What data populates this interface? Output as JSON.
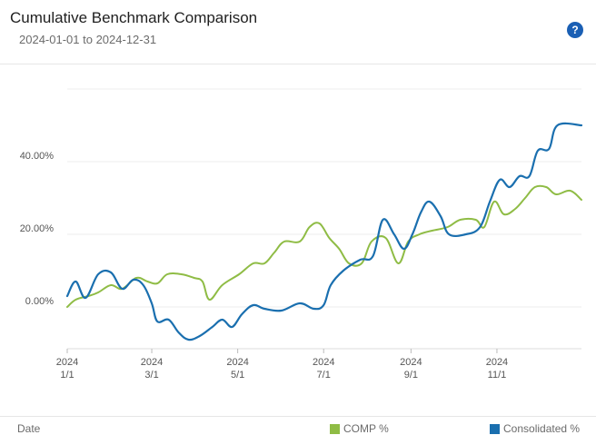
{
  "header": {
    "title": "Cumulative Benchmark Comparison",
    "subtitle": "2024-01-01 to 2024-12-31",
    "help_symbol": "?"
  },
  "footer": {
    "x_label": "Date"
  },
  "colors": {
    "comp": "#8fbc45",
    "consolidated": "#1a6faf",
    "help": "#1a5fb4"
  },
  "icons": {
    "help": "question-circle-icon"
  },
  "chart_data": {
    "type": "line",
    "xlabel": "Date",
    "ylabel": "",
    "ylim": [
      -12,
      60
    ],
    "y_ticks": [
      0,
      20,
      40
    ],
    "y_tick_labels": [
      "0.00%",
      "20.00%",
      "40.00%"
    ],
    "x_ticks": [
      "2024-01-01",
      "2024-03-01",
      "2024-05-01",
      "2024-07-01",
      "2024-09-01",
      "2024-11-01"
    ],
    "x_tick_labels": [
      [
        "2024",
        "1/1"
      ],
      [
        "2024",
        "3/1"
      ],
      [
        "2024",
        "5/1"
      ],
      [
        "2024",
        "7/1"
      ],
      [
        "2024",
        "9/1"
      ],
      [
        "2024",
        "11/1"
      ]
    ],
    "x_range": [
      "2024-01-01",
      "2024-12-31"
    ],
    "grid": true,
    "legend_position": "bottom",
    "series": [
      {
        "name": "COMP %",
        "color": "#8fbc45",
        "points": [
          [
            "2024-01-01",
            0
          ],
          [
            "2024-01-07",
            2
          ],
          [
            "2024-01-16",
            3
          ],
          [
            "2024-01-23",
            4
          ],
          [
            "2024-02-01",
            6
          ],
          [
            "2024-02-09",
            5
          ],
          [
            "2024-02-19",
            8
          ],
          [
            "2024-02-27",
            7
          ],
          [
            "2024-03-05",
            6.5
          ],
          [
            "2024-03-12",
            9
          ],
          [
            "2024-03-22",
            9
          ],
          [
            "2024-03-31",
            8
          ],
          [
            "2024-04-06",
            7
          ],
          [
            "2024-04-11",
            2
          ],
          [
            "2024-04-20",
            6
          ],
          [
            "2024-05-02",
            9
          ],
          [
            "2024-05-12",
            12
          ],
          [
            "2024-05-20",
            12
          ],
          [
            "2024-05-27",
            15
          ],
          [
            "2024-06-03",
            18
          ],
          [
            "2024-06-14",
            18
          ],
          [
            "2024-06-21",
            22
          ],
          [
            "2024-06-28",
            23
          ],
          [
            "2024-07-05",
            19
          ],
          [
            "2024-07-12",
            16
          ],
          [
            "2024-07-19",
            12
          ],
          [
            "2024-07-28",
            12
          ],
          [
            "2024-08-04",
            18
          ],
          [
            "2024-08-14",
            19
          ],
          [
            "2024-08-23",
            12
          ],
          [
            "2024-08-30",
            18
          ],
          [
            "2024-09-07",
            20
          ],
          [
            "2024-09-16",
            21
          ],
          [
            "2024-09-27",
            22
          ],
          [
            "2024-10-06",
            24
          ],
          [
            "2024-10-17",
            24
          ],
          [
            "2024-10-23",
            22
          ],
          [
            "2024-10-30",
            29
          ],
          [
            "2024-11-06",
            25.5
          ],
          [
            "2024-11-14",
            27
          ],
          [
            "2024-11-21",
            30
          ],
          [
            "2024-11-28",
            33
          ],
          [
            "2024-12-06",
            33
          ],
          [
            "2024-12-13",
            31
          ],
          [
            "2024-12-23",
            32
          ],
          [
            "2024-12-31",
            29.5
          ]
        ]
      },
      {
        "name": "Consolidated %",
        "color": "#1a6faf",
        "points": [
          [
            "2024-01-01",
            3
          ],
          [
            "2024-01-07",
            7
          ],
          [
            "2024-01-14",
            2.5
          ],
          [
            "2024-01-23",
            9
          ],
          [
            "2024-02-01",
            9.5
          ],
          [
            "2024-02-09",
            5
          ],
          [
            "2024-02-17",
            7.5
          ],
          [
            "2024-02-24",
            6
          ],
          [
            "2024-03-01",
            1
          ],
          [
            "2024-03-05",
            -4
          ],
          [
            "2024-03-13",
            -3.5
          ],
          [
            "2024-03-20",
            -7
          ],
          [
            "2024-03-27",
            -9
          ],
          [
            "2024-04-04",
            -8
          ],
          [
            "2024-04-13",
            -5.5
          ],
          [
            "2024-04-20",
            -3.5
          ],
          [
            "2024-04-27",
            -5.5
          ],
          [
            "2024-05-04",
            -2
          ],
          [
            "2024-05-12",
            0.5
          ],
          [
            "2024-05-20",
            -0.5
          ],
          [
            "2024-06-01",
            -1
          ],
          [
            "2024-06-14",
            1
          ],
          [
            "2024-06-24",
            -0.5
          ],
          [
            "2024-07-01",
            0.5
          ],
          [
            "2024-07-06",
            6
          ],
          [
            "2024-07-15",
            10
          ],
          [
            "2024-07-27",
            13
          ],
          [
            "2024-08-05",
            14
          ],
          [
            "2024-08-12",
            24
          ],
          [
            "2024-08-20",
            20
          ],
          [
            "2024-08-27",
            16
          ],
          [
            "2024-09-02",
            20
          ],
          [
            "2024-09-08",
            26
          ],
          [
            "2024-09-14",
            29
          ],
          [
            "2024-09-22",
            25
          ],
          [
            "2024-09-28",
            20
          ],
          [
            "2024-10-10",
            20
          ],
          [
            "2024-10-20",
            22
          ],
          [
            "2024-10-27",
            29
          ],
          [
            "2024-11-03",
            35
          ],
          [
            "2024-11-10",
            33
          ],
          [
            "2024-11-17",
            36
          ],
          [
            "2024-11-24",
            36
          ],
          [
            "2024-11-30",
            43
          ],
          [
            "2024-12-08",
            43.5
          ],
          [
            "2024-12-14",
            50
          ],
          [
            "2024-12-31",
            50
          ]
        ]
      }
    ]
  }
}
